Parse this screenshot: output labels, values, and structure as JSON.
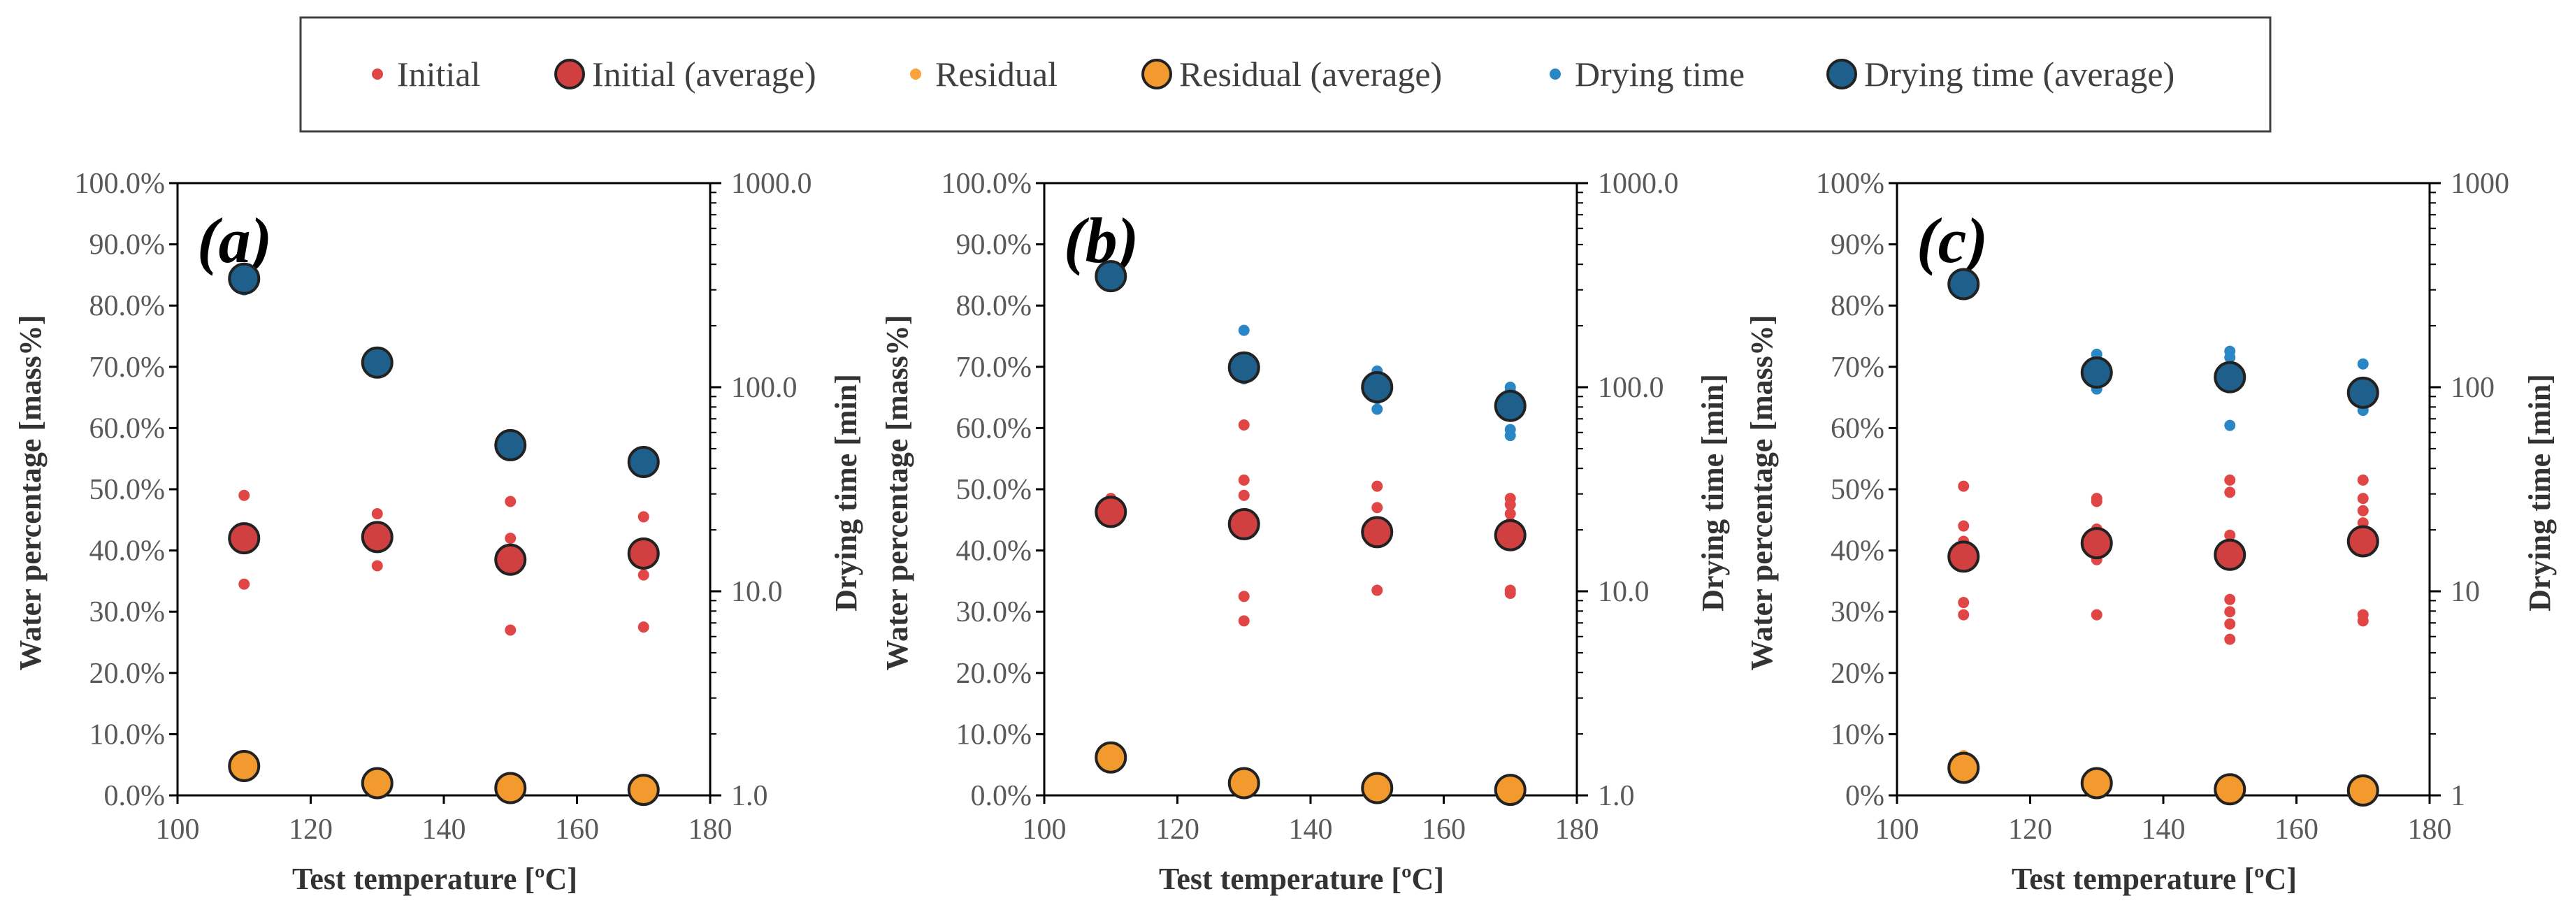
{
  "legend": [
    {
      "label": "Initial",
      "key": "initial",
      "avg": false
    },
    {
      "label": "Initial (average)",
      "key": "initial",
      "avg": true
    },
    {
      "label": "Residual",
      "key": "residual",
      "avg": false
    },
    {
      "label": "Residual (average)",
      "key": "residual",
      "avg": true
    },
    {
      "label": "Drying time",
      "key": "drying",
      "avg": false
    },
    {
      "label": "Drying time (average)",
      "key": "drying",
      "avg": true
    }
  ],
  "colors": {
    "initial": "#e04646",
    "initial_avg_fill": "#d04040",
    "residual": "#f7a43a",
    "residual_avg_fill": "#f39a2e",
    "drying": "#2b86c5",
    "drying_avg_fill": "#1e5f8c",
    "avg_edge": "#222222",
    "axis": "#000000"
  },
  "chart_data": [
    {
      "type": "scatter",
      "panel_label": "(a)",
      "xlabel": "Test temperature [ºC]",
      "ylabel": "Water percentage [mass%]",
      "y2label": "Drying time [min]",
      "xlim": [
        100,
        180
      ],
      "xticks": [
        100,
        120,
        140,
        160,
        180
      ],
      "ylim": [
        0,
        100
      ],
      "yticks": [
        "0.0%",
        "10.0%",
        "20.0%",
        "30.0%",
        "40.0%",
        "50.0%",
        "60.0%",
        "70.0%",
        "80.0%",
        "90.0%",
        "100.0%"
      ],
      "y2lim": [
        1,
        1000
      ],
      "y2scale": "log",
      "y2ticks": [
        "1.0",
        "10.0",
        "100.0",
        "1000.0"
      ],
      "initial": {
        "x": [
          110,
          110,
          130,
          130,
          150,
          150,
          150,
          150,
          170,
          170,
          170,
          170
        ],
        "y": [
          49,
          34.5,
          46,
          37.5,
          48,
          42,
          37.5,
          27,
          45.5,
          41,
          36,
          27.5
        ]
      },
      "initial_avg": {
        "x": [
          110,
          130,
          150,
          170
        ],
        "y": [
          42,
          42.2,
          38.5,
          39.5
        ]
      },
      "residual": {
        "x": [
          110,
          130,
          150,
          170
        ],
        "y": [
          5,
          2.2,
          1.3,
          1
        ]
      },
      "residual_avg": {
        "x": [
          110,
          130,
          150,
          170
        ],
        "y": [
          4.8,
          2,
          1.2,
          0.9
        ]
      },
      "drying": {
        "x": [
          110,
          110,
          110,
          130,
          130,
          130,
          150,
          150,
          150,
          170,
          170,
          170
        ],
        "y": [
          370,
          300,
          330,
          140,
          125,
          135,
          55,
          48,
          52,
          45,
          42,
          40
        ]
      },
      "drying_avg": {
        "x": [
          110,
          130,
          150,
          170
        ],
        "y": [
          340,
          132,
          52,
          43
        ]
      }
    },
    {
      "type": "scatter",
      "panel_label": "(b)",
      "xlabel": "Test temperature [ºC]",
      "ylabel": "Water percentage [mass%]",
      "y2label": "Drying time [min]",
      "xlim": [
        100,
        180
      ],
      "xticks": [
        100,
        120,
        140,
        160,
        180
      ],
      "ylim": [
        0,
        100
      ],
      "yticks": [
        "0.0%",
        "10.0%",
        "20.0%",
        "30.0%",
        "40.0%",
        "50.0%",
        "60.0%",
        "70.0%",
        "80.0%",
        "90.0%",
        "100.0%"
      ],
      "y2lim": [
        1,
        1000
      ],
      "y2scale": "log",
      "y2ticks": [
        "1.0",
        "10.0",
        "100.0",
        "1000.0"
      ],
      "initial": {
        "x": [
          110,
          110,
          110,
          130,
          130,
          130,
          130,
          130,
          150,
          150,
          150,
          150,
          170,
          170,
          170,
          170,
          170,
          170
        ],
        "y": [
          48.5,
          46,
          45,
          60.5,
          51.5,
          49,
          32.5,
          28.5,
          50.5,
          47,
          42.5,
          33.5,
          48.5,
          47.5,
          46,
          44.5,
          33.5,
          33
        ]
      },
      "initial_avg": {
        "x": [
          110,
          130,
          150,
          170
        ],
        "y": [
          46.3,
          44.3,
          43,
          42.5
        ]
      },
      "residual": {
        "x": [
          110,
          110,
          130,
          150,
          170
        ],
        "y": [
          7.5,
          5.5,
          2.5,
          1.5,
          1.2
        ]
      },
      "residual_avg": {
        "x": [
          110,
          130,
          150,
          170
        ],
        "y": [
          6.2,
          2,
          1.2,
          0.9
        ]
      },
      "drying": {
        "x": [
          110,
          110,
          110,
          130,
          130,
          130,
          130,
          150,
          150,
          150,
          150,
          170,
          170,
          170,
          170,
          170
        ],
        "y": [
          390,
          345,
          325,
          190,
          130,
          118,
          110,
          120,
          98,
          88,
          78,
          100,
          96,
          90,
          62,
          58
        ]
      },
      "drying_avg": {
        "x": [
          110,
          130,
          150,
          170
        ],
        "y": [
          350,
          125,
          100,
          81
        ]
      }
    },
    {
      "type": "scatter",
      "panel_label": "(c)",
      "xlabel": "Test temperature [ºC]",
      "ylabel": "Water percentage [mass%]",
      "y2label": "Drying time [min]",
      "xlim": [
        100,
        180
      ],
      "xticks": [
        100,
        120,
        140,
        160,
        180
      ],
      "ylim": [
        0,
        100
      ],
      "yticks": [
        "0%",
        "10%",
        "20%",
        "30%",
        "40%",
        "50%",
        "60%",
        "70%",
        "80%",
        "90%",
        "100%"
      ],
      "y2lim": [
        1,
        1000
      ],
      "y2scale": "log",
      "y2ticks": [
        "1",
        "10",
        "100",
        "1000"
      ],
      "initial": {
        "x": [
          110,
          110,
          110,
          110,
          110,
          130,
          130,
          130,
          130,
          130,
          130,
          150,
          150,
          150,
          150,
          150,
          150,
          150,
          170,
          170,
          170,
          170,
          170,
          170,
          170
        ],
        "y": [
          50.5,
          44,
          41.5,
          31.5,
          29.5,
          48.5,
          48,
          43.5,
          40.5,
          38.5,
          29.5,
          51.5,
          49.5,
          42.5,
          32,
          30,
          28,
          25.5,
          51.5,
          48.5,
          46.5,
          44.5,
          43,
          29.5,
          28.5
        ]
      },
      "initial_avg": {
        "x": [
          110,
          130,
          150,
          170
        ],
        "y": [
          39,
          41.2,
          39.3,
          41.5
        ]
      },
      "residual": {
        "x": [
          110,
          130,
          130,
          150,
          170
        ],
        "y": [
          6.5,
          3,
          1.5,
          1.5,
          1
        ]
      },
      "residual_avg": {
        "x": [
          110,
          130,
          150,
          170
        ],
        "y": [
          4.5,
          2,
          1,
          0.8
        ]
      },
      "drying": {
        "x": [
          110,
          110,
          110,
          130,
          130,
          130,
          130,
          150,
          150,
          150,
          150,
          150,
          170,
          170,
          170,
          170,
          170,
          170,
          170
        ],
        "y": [
          340,
          310,
          290,
          145,
          125,
          110,
          98,
          150,
          140,
          125,
          115,
          65,
          130,
          105,
          92,
          87,
          84,
          80,
          77
        ]
      },
      "drying_avg": {
        "x": [
          110,
          130,
          150,
          170
        ],
        "y": [
          320,
          118,
          112,
          94
        ]
      }
    }
  ]
}
